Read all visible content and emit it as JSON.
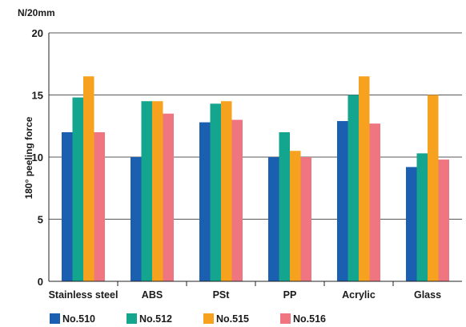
{
  "chart_data": {
    "type": "bar",
    "unit_label": "N/20mm",
    "ylabel": "180° peeling force",
    "xlabel": "",
    "ylim": [
      0,
      20
    ],
    "yticks": [
      0,
      5,
      10,
      15,
      20
    ],
    "grid": "horizontal",
    "legend_position": "bottom",
    "categories": [
      "Stainless steel",
      "ABS",
      "PSt",
      "PP",
      "Acrylic",
      "Glass"
    ],
    "series": [
      {
        "name": "No.510",
        "color": "#1a5fb0",
        "values": [
          12.0,
          10.0,
          12.8,
          10.0,
          12.9,
          9.2
        ]
      },
      {
        "name": "No.512",
        "color": "#14a58e",
        "values": [
          14.8,
          14.5,
          14.3,
          12.0,
          15.0,
          10.3
        ]
      },
      {
        "name": "No.515",
        "color": "#f6a21e",
        "values": [
          16.5,
          14.5,
          14.5,
          10.5,
          16.5,
          15.0
        ]
      },
      {
        "name": "No.516",
        "color": "#ef7580",
        "values": [
          12.0,
          13.5,
          13.0,
          10.0,
          12.7,
          9.8
        ]
      }
    ]
  }
}
